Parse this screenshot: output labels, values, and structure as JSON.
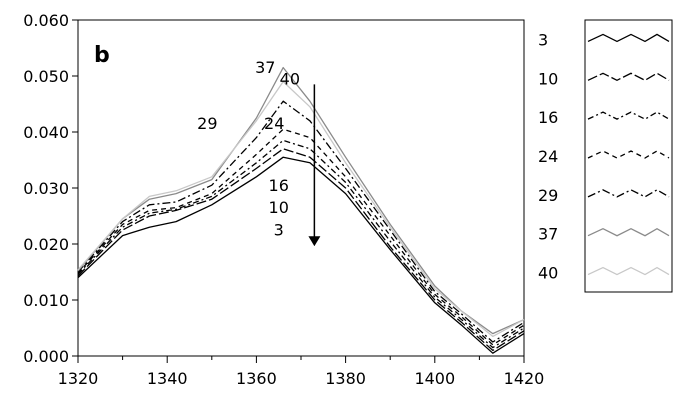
{
  "chart_data": {
    "type": "line",
    "panel_label": "b",
    "title": "",
    "xlabel": "",
    "ylabel": "",
    "xlim": [
      1320,
      1420
    ],
    "ylim": [
      0.0,
      0.06
    ],
    "xticks": [
      "1320",
      "1340",
      "1360",
      "1380",
      "1400",
      "1420"
    ],
    "yticks": [
      "0.000",
      "0.010",
      "0.020",
      "0.030",
      "0.040",
      "0.050",
      "0.060"
    ],
    "grid": false,
    "legend_placement": "right",
    "x": [
      1320,
      1330,
      1336,
      1342,
      1350,
      1360,
      1366,
      1372,
      1380,
      1390,
      1400,
      1406,
      1413,
      1420
    ],
    "series": [
      {
        "name": "3",
        "color": "#000000",
        "values": [
          0.014,
          0.0215,
          0.023,
          0.024,
          0.027,
          0.032,
          0.0355,
          0.0345,
          0.029,
          0.019,
          0.0095,
          0.0055,
          0.0005,
          0.004
        ]
      },
      {
        "name": "10",
        "color": "#000000",
        "values": [
          0.0143,
          0.0225,
          0.025,
          0.026,
          0.028,
          0.0335,
          0.037,
          0.0355,
          0.03,
          0.0195,
          0.01,
          0.006,
          0.001,
          0.0045
        ]
      },
      {
        "name": "16",
        "color": "#000000",
        "values": [
          0.0146,
          0.023,
          0.0255,
          0.0262,
          0.0285,
          0.0345,
          0.0385,
          0.037,
          0.031,
          0.0205,
          0.0105,
          0.0065,
          0.0015,
          0.005
        ]
      },
      {
        "name": "24",
        "color": "#000000",
        "values": [
          0.0148,
          0.0235,
          0.026,
          0.0265,
          0.029,
          0.036,
          0.0405,
          0.039,
          0.032,
          0.0215,
          0.011,
          0.007,
          0.002,
          0.0055
        ]
      },
      {
        "name": "29",
        "color": "#000000",
        "values": [
          0.015,
          0.024,
          0.027,
          0.0275,
          0.0305,
          0.039,
          0.0455,
          0.042,
          0.0335,
          0.0225,
          0.0115,
          0.0075,
          0.0025,
          0.006
        ]
      },
      {
        "name": "37",
        "color": "#8a8a8a",
        "values": [
          0.0152,
          0.0245,
          0.028,
          0.029,
          0.0315,
          0.0425,
          0.0515,
          0.0455,
          0.0355,
          0.0235,
          0.0125,
          0.008,
          0.004,
          0.0065
        ]
      },
      {
        "name": "40",
        "color": "#c8c8c8",
        "values": [
          0.0154,
          0.0245,
          0.0285,
          0.0295,
          0.032,
          0.042,
          0.049,
          0.0445,
          0.0345,
          0.023,
          0.012,
          0.008,
          0.0035,
          0.0065
        ]
      }
    ],
    "annotations": [
      {
        "text": "37",
        "x": 1362,
        "y": 0.0505
      },
      {
        "text": "40",
        "x": 1367.5,
        "y": 0.0485
      },
      {
        "text": "29",
        "x": 1349,
        "y": 0.0405
      },
      {
        "text": "24",
        "x": 1364,
        "y": 0.0405
      },
      {
        "text": "16",
        "x": 1365,
        "y": 0.0295
      },
      {
        "text": "10",
        "x": 1365,
        "y": 0.0255
      },
      {
        "text": "3",
        "x": 1365,
        "y": 0.0215
      }
    ],
    "arrow": {
      "x": 1373,
      "y_start": 0.0485,
      "y_end": 0.0205
    }
  }
}
